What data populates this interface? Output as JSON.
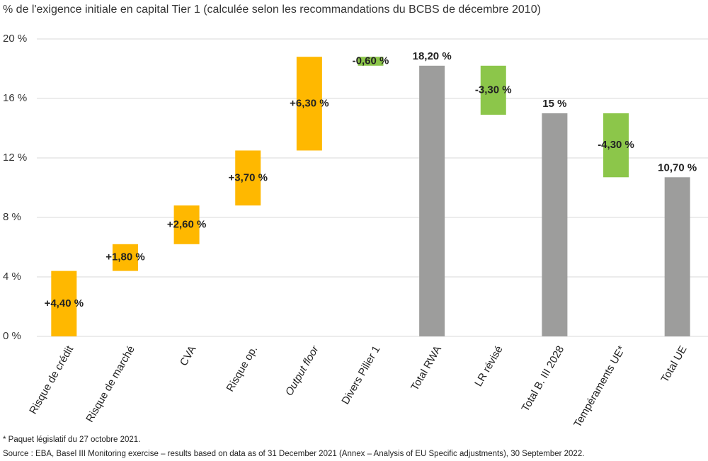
{
  "chart_data": {
    "type": "waterfall",
    "title": "% de l'exigence initiale en capital Tier 1 (calculée selon les recommandations du BCBS de décembre 2010)",
    "categories": [
      "Risque de crédit",
      "Risque de marché",
      "CVA",
      "Risque op.",
      "Output floor",
      "Divers Pilier 1",
      "Total RWA",
      "LR révisé",
      "Total B. III 2028",
      "Tempéraments UE*",
      "Total UE"
    ],
    "values": [
      4.4,
      1.8,
      2.6,
      3.7,
      6.3,
      -0.6,
      18.2,
      -3.3,
      15,
      -4.3,
      10.7
    ],
    "value_labels": [
      "+4,40 %",
      "+1,80 %",
      "+2,60 %",
      "+3,70 %",
      "+6,30 %",
      "-0,60 %",
      "18,20 %",
      "-3,30 %",
      "15 %",
      "-4,30 %",
      "10,70 %"
    ],
    "measure": [
      "relative",
      "relative",
      "relative",
      "relative",
      "relative",
      "relative",
      "total",
      "relative",
      "total",
      "relative",
      "total"
    ],
    "colors": [
      "#ffb800",
      "#ffb800",
      "#ffb800",
      "#ffb800",
      "#ffb800",
      "#8cc64a",
      "#9d9d9c",
      "#8cc64a",
      "#9d9d9c",
      "#8cc64a",
      "#9d9d9c"
    ],
    "ylim": [
      0,
      20
    ],
    "yticks": [
      {
        "value": 0,
        "label": "0 %"
      },
      {
        "value": 4,
        "label": "4 %"
      },
      {
        "value": 8,
        "label": "8 %"
      },
      {
        "value": 12,
        "label": "12 %"
      },
      {
        "value": 16,
        "label": "16 %"
      },
      {
        "value": 20,
        "label": "20 %"
      }
    ],
    "grid": true,
    "footnote": "* Paquet législatif du 27 octobre 2021.",
    "source": "Source : EBA, Basel III Monitoring exercise – results based on data as of 31 December 2021 (Annex – Analysis of EU Specific adjustments), 30 September 2022."
  }
}
